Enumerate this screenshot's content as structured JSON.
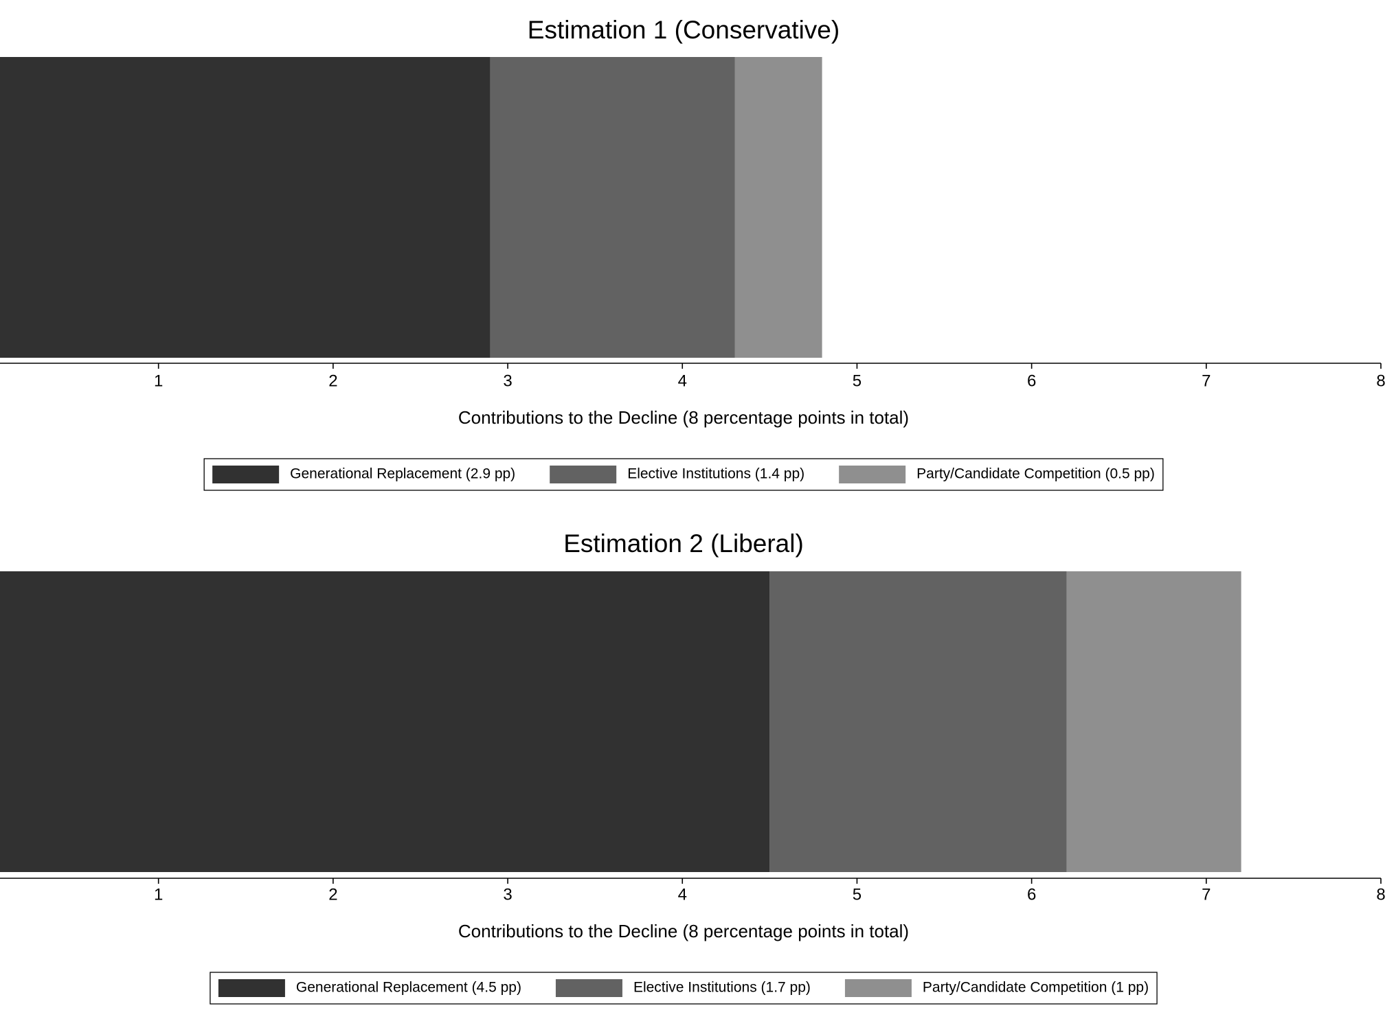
{
  "chart_data": [
    {
      "type": "bar",
      "orientation": "horizontal",
      "stacked": true,
      "title": "Estimation 1 (Conservative)",
      "x_label": "Contributions to the Decline (8 percentage points in total)",
      "series": [
        {
          "name": "Generational Replacement (2.9 pp)",
          "color": "#313131",
          "values": [
            2.9
          ]
        },
        {
          "name": "Elective Institutions (1.4 pp)",
          "color": "#626262",
          "values": [
            1.4
          ]
        },
        {
          "name": "Party/Candidate Competition (0.5 pp)",
          "color": "#8f8f8f",
          "values": [
            0.5
          ]
        }
      ],
      "xlim": [
        0,
        8
      ],
      "xticks": [
        1,
        2,
        3,
        4,
        5,
        6,
        7,
        8
      ],
      "legend": "bottom"
    },
    {
      "type": "bar",
      "orientation": "horizontal",
      "stacked": true,
      "title": "Estimation 2 (Liberal)",
      "x_label": "Contributions to the Decline (8 percentage points in total)",
      "series": [
        {
          "name": "Generational Replacement (4.5 pp)",
          "color": "#313131",
          "values": [
            4.5
          ]
        },
        {
          "name": "Elective Institutions (1.7 pp)",
          "color": "#626262",
          "values": [
            1.7
          ]
        },
        {
          "name": "Party/Candidate Competition (1 pp)",
          "color": "#8f8f8f",
          "values": [
            1
          ]
        }
      ],
      "xlim": [
        0,
        8
      ],
      "xticks": [
        1,
        2,
        3,
        4,
        5,
        6,
        7,
        8
      ],
      "legend": "bottom"
    }
  ]
}
